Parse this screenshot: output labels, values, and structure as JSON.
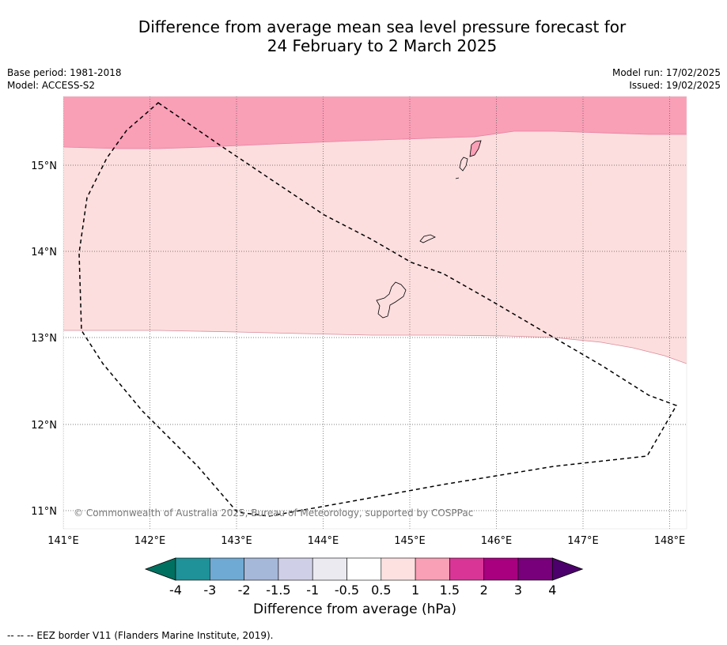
{
  "header": {
    "title_line1": "Difference from average mean sea level pressure forecast for",
    "title_line2": "24 February to 2 March 2025",
    "base_period": "Base period: 1981-2018",
    "model": "Model: ACCESS-S2",
    "model_run": "Model run: 17/02/2025",
    "issued": "Issued: 19/02/2025"
  },
  "map": {
    "lon_labels": [
      "141°E",
      "142°E",
      "143°E",
      "144°E",
      "145°E",
      "146°E",
      "147°E",
      "148°E"
    ],
    "lat_labels": [
      "15°N",
      "14°N",
      "13°N",
      "12°N",
      "11°N"
    ],
    "copyright": "© Commonwealth of Australia 2025, Bureau of Meteorology, supported by COSPPac",
    "colors": {
      "anomaly_1_to_1_5": "#f99fb6",
      "anomaly_0_5_to_1": "#fddede",
      "anomaly_neutral": "#ffffff"
    }
  },
  "colorbar": {
    "title": "Difference from average (hPa)",
    "ticks": [
      "-4",
      "-3",
      "-2",
      "-1.5",
      "-1",
      "-0.5",
      "0.5",
      "1",
      "1.5",
      "2",
      "3",
      "4"
    ],
    "colors": [
      "#007060",
      "#1e9298",
      "#6eaad3",
      "#a5b8da",
      "#cfd0e8",
      "#ebeaf0",
      "#ffffff",
      "#fde1e1",
      "#f99fb6",
      "#d93597",
      "#a8007f",
      "#78007b",
      "#4c006b"
    ]
  },
  "footer": {
    "eez_note": "-- -- -- EEZ border V11 (Flanders Marine Institute, 2019)."
  }
}
